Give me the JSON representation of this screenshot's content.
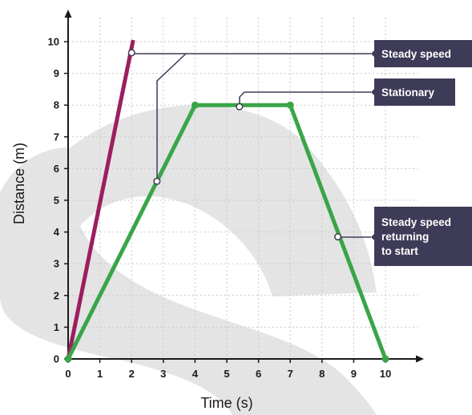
{
  "chart_data": {
    "type": "line",
    "xlabel": "Time (s)",
    "ylabel": "Distance (m)",
    "xlim": [
      0,
      10
    ],
    "ylim": [
      0,
      10
    ],
    "x_ticks": [
      0,
      1,
      2,
      3,
      4,
      5,
      6,
      7,
      8,
      9,
      10
    ],
    "y_ticks": [
      0,
      1,
      2,
      3,
      4,
      5,
      6,
      7,
      8,
      9,
      10
    ],
    "grid": true,
    "series": [
      {
        "color": "#9b1f5f",
        "points": [
          [
            0,
            0
          ],
          [
            2.05,
            10.05
          ]
        ]
      },
      {
        "color": "#3aa548",
        "points": [
          [
            0,
            0
          ],
          [
            4,
            8
          ],
          [
            7,
            8
          ],
          [
            10,
            0
          ]
        ],
        "markers_at": [
          [
            0,
            0
          ],
          [
            4,
            8
          ],
          [
            7,
            8
          ],
          [
            10,
            0
          ]
        ]
      }
    ],
    "annotations": [
      {
        "text": "Steady speed",
        "lines": [
          "Steady speed"
        ],
        "points": [
          [
            2,
            9.65
          ],
          [
            2.8,
            5.6
          ]
        ]
      },
      {
        "text": "Stationary",
        "lines": [
          "Stationary"
        ],
        "points": [
          [
            5.4,
            7.95
          ]
        ]
      },
      {
        "text": "Steady speed returning to start",
        "lines": [
          "Steady speed",
          "returning",
          "to start"
        ],
        "points": [
          [
            8.5,
            3.85
          ]
        ]
      }
    ]
  },
  "colors": {
    "callout_bg": "#3d3b57",
    "axis": "#1a1a1a",
    "grid": "#c9c9c9",
    "background_watermark": "#e3e3e3"
  }
}
